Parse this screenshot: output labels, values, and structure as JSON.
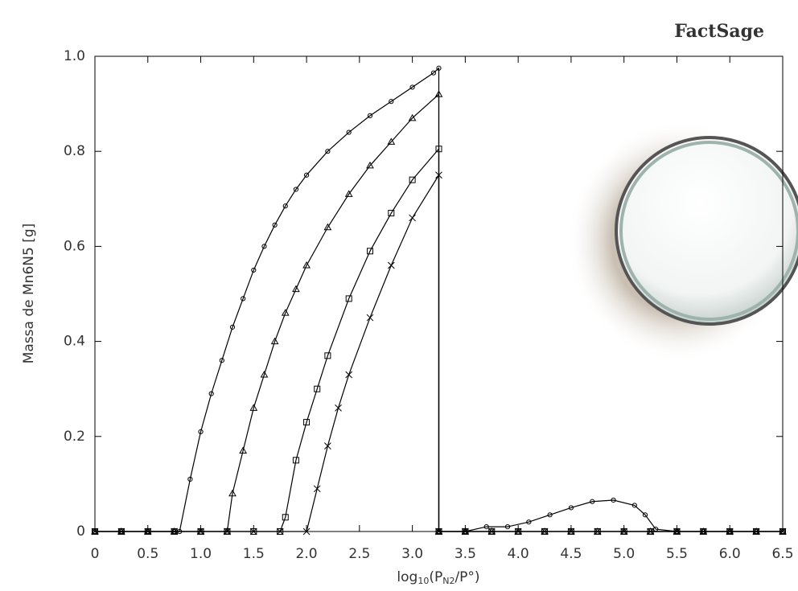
{
  "chart_data": {
    "type": "line",
    "logo": "FactSage",
    "ylabel": "Massa de Mn6N5 [g]",
    "xlabel_parts": [
      "log",
      "10",
      "(P",
      "N2",
      "/P°)"
    ],
    "xlim": [
      0,
      6.5
    ],
    "ylim": [
      0,
      1.0
    ],
    "xticks": [
      0,
      0.5,
      {
        "value": 1,
        "label": "1.0"
      },
      1.5,
      {
        "value": 2,
        "label": "2.0"
      },
      2.5,
      {
        "value": 3,
        "label": "3.0"
      },
      3.5,
      {
        "value": 4,
        "label": "4.0"
      },
      4.5,
      {
        "value": 5,
        "label": "5.0"
      },
      5.5,
      {
        "value": 6,
        "label": "6.0"
      },
      6.5
    ],
    "yticks": [
      0,
      0.2,
      0.4,
      0.6,
      0.8,
      {
        "value": 1,
        "label": "1.0"
      }
    ],
    "series": [
      {
        "marker": "circle",
        "color": "#000000",
        "x": [
          0,
          0.25,
          0.5,
          0.75,
          0.8,
          0.9,
          1.0,
          1.1,
          1.2,
          1.3,
          1.4,
          1.5,
          1.6,
          1.7,
          1.8,
          1.9,
          2.0,
          2.2,
          2.4,
          2.6,
          2.8,
          3.0,
          3.2,
          3.25,
          3.25,
          3.5,
          3.7,
          3.9,
          4.1,
          4.3,
          4.5,
          4.7,
          4.9,
          5.1,
          5.2,
          5.3,
          5.5,
          5.75,
          6.0,
          6.25,
          6.5
        ],
        "values": [
          0,
          0,
          0,
          0,
          0,
          0.11,
          0.21,
          0.29,
          0.36,
          0.43,
          0.49,
          0.55,
          0.6,
          0.645,
          0.685,
          0.72,
          0.75,
          0.8,
          0.84,
          0.875,
          0.905,
          0.935,
          0.965,
          0.975,
          0,
          0,
          0.01,
          0.01,
          0.02,
          0.035,
          0.05,
          0.063,
          0.066,
          0.055,
          0.035,
          0.005,
          0,
          0,
          0,
          0,
          0
        ]
      },
      {
        "marker": "triangle",
        "color": "#000000",
        "x": [
          0,
          0.25,
          0.5,
          0.75,
          1.0,
          1.25,
          1.3,
          1.4,
          1.5,
          1.6,
          1.7,
          1.8,
          1.9,
          2.0,
          2.2,
          2.4,
          2.6,
          2.8,
          3.0,
          3.25,
          3.25,
          3.5,
          3.75,
          4.0,
          4.25,
          4.5,
          4.75,
          5.0,
          5.25,
          5.5,
          5.75,
          6.0,
          6.25,
          6.5
        ],
        "values": [
          0,
          0,
          0,
          0,
          0,
          0,
          0.08,
          0.17,
          0.26,
          0.33,
          0.4,
          0.46,
          0.51,
          0.56,
          0.64,
          0.71,
          0.77,
          0.82,
          0.87,
          0.92,
          0,
          0,
          0,
          0,
          0,
          0,
          0,
          0,
          0,
          0,
          0,
          0,
          0,
          0
        ]
      },
      {
        "marker": "square",
        "color": "#000000",
        "x": [
          0,
          0.25,
          0.5,
          0.75,
          1.0,
          1.25,
          1.5,
          1.75,
          1.8,
          1.9,
          2.0,
          2.1,
          2.2,
          2.4,
          2.6,
          2.8,
          3.0,
          3.25,
          3.25,
          3.5,
          3.75,
          4.0,
          4.25,
          4.5,
          4.75,
          5.0,
          5.25,
          5.5,
          5.75,
          6.0,
          6.25,
          6.5
        ],
        "values": [
          0,
          0,
          0,
          0,
          0,
          0,
          0,
          0,
          0.03,
          0.15,
          0.23,
          0.3,
          0.37,
          0.49,
          0.59,
          0.67,
          0.74,
          0.805,
          0,
          0,
          0,
          0,
          0,
          0,
          0,
          0,
          0,
          0,
          0,
          0,
          0,
          0
        ]
      },
      {
        "marker": "x",
        "color": "#000000",
        "x": [
          0,
          0.25,
          0.5,
          0.75,
          1.0,
          1.25,
          1.5,
          1.75,
          2.0,
          2.1,
          2.2,
          2.3,
          2.4,
          2.6,
          2.8,
          3.0,
          3.25,
          3.25,
          3.5,
          3.75,
          4.0,
          4.25,
          4.5,
          4.75,
          5.0,
          5.25,
          5.5,
          5.75,
          6.0,
          6.25,
          6.5
        ],
        "values": [
          0,
          0,
          0,
          0,
          0,
          0,
          0,
          0,
          0,
          0.09,
          0.18,
          0.26,
          0.33,
          0.45,
          0.56,
          0.66,
          0.75,
          0,
          0,
          0,
          0,
          0,
          0,
          0,
          0,
          0,
          0,
          0,
          0,
          0,
          0
        ]
      }
    ]
  }
}
